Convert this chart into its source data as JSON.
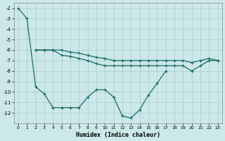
{
  "background_color": "#cce8e8",
  "grid_color": "#aacccc",
  "line_color": "#1a6b6b",
  "xlabel": "Humidex (Indice chaleur)",
  "curve1_x": [
    0,
    1,
    2,
    3,
    4,
    5,
    6,
    7,
    8,
    9,
    10,
    11,
    12,
    13,
    14,
    15,
    16,
    17,
    18,
    19,
    20,
    21,
    22,
    23
  ],
  "curve1_y": [
    -2,
    -3,
    -9.5,
    -10.2,
    -11.5,
    -11.5,
    -11.5,
    -11.5,
    -10.5,
    -9.8,
    -9.8,
    -10.5,
    -12.3,
    -12.5,
    -11.7,
    -10.3,
    -9.2,
    -8.0,
    null,
    null,
    null,
    null,
    null,
    null
  ],
  "curve2_x": [
    2,
    3,
    4,
    5,
    6,
    7,
    8,
    9,
    10,
    11,
    12,
    13,
    14,
    15,
    16,
    17,
    18,
    19,
    20,
    21,
    22,
    23
  ],
  "curve2_y": [
    -6.0,
    -6.0,
    -6.0,
    -6.5,
    -6.6,
    -6.8,
    -7.0,
    -7.3,
    -7.5,
    -7.5,
    -7.5,
    -7.5,
    -7.5,
    -7.5,
    -7.5,
    -7.5,
    -7.5,
    -7.5,
    -8.0,
    -7.5,
    -7.0,
    -7.0
  ],
  "curve3_x": [
    2,
    3,
    4,
    5,
    6,
    7,
    8,
    9,
    10,
    11,
    12,
    13,
    14,
    15,
    16,
    17,
    18,
    19,
    20,
    21,
    22,
    23
  ],
  "curve3_y": [
    -6.0,
    -6.0,
    -6.0,
    -6.0,
    -6.2,
    -6.3,
    -6.5,
    -6.7,
    -6.8,
    -7.0,
    -7.0,
    -7.0,
    -7.0,
    -7.0,
    -7.0,
    -7.0,
    -7.0,
    -7.0,
    -7.2,
    -7.0,
    -6.8,
    -7.0
  ],
  "ylim_min": -13.0,
  "ylim_max": -1.5,
  "xlim_min": -0.5,
  "xlim_max": 23.5,
  "yticks": [
    -2,
    -3,
    -4,
    -5,
    -6,
    -7,
    -8,
    -9,
    -10,
    -11,
    -12
  ],
  "xticks": [
    0,
    1,
    2,
    3,
    4,
    5,
    6,
    7,
    8,
    9,
    10,
    11,
    12,
    13,
    14,
    15,
    16,
    17,
    18,
    19,
    20,
    21,
    22,
    23
  ]
}
